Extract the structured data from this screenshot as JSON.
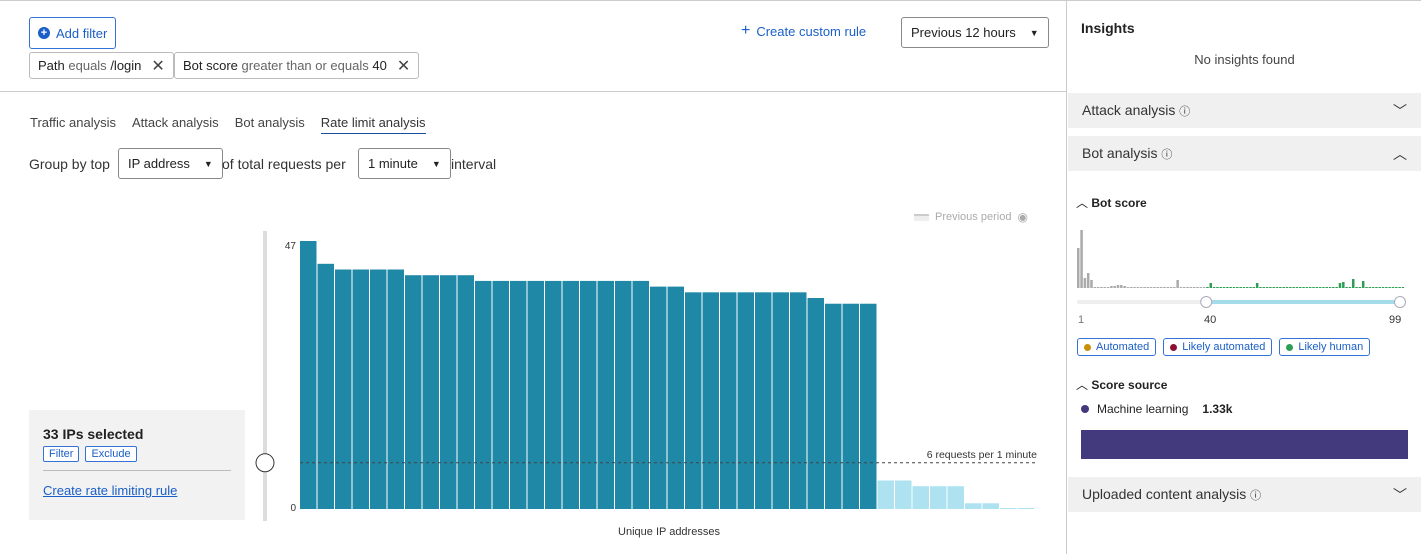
{
  "toolbar": {
    "add_filter": "Add filter",
    "create_rule": "Create custom rule",
    "time_range": "Previous 12 hours"
  },
  "filters": [
    {
      "field": "Path",
      "op": "equals",
      "value": "/login"
    },
    {
      "field": "Bot score",
      "op": "greater than or equals",
      "value": "40"
    }
  ],
  "tabs": [
    "Traffic analysis",
    "Attack analysis",
    "Bot analysis",
    "Rate limit analysis"
  ],
  "active_tab": "Rate limit analysis",
  "group": {
    "prefix": "Group by top",
    "group_by": "IP address",
    "middle": "of total requests per",
    "interval": "1 minute",
    "suffix": "interval"
  },
  "selection": {
    "title": "33 IPs selected",
    "filter": "Filter",
    "exclude": "Exclude",
    "create_rule": "Create rate limiting rule"
  },
  "chart_data": {
    "type": "bar",
    "xlabel": "Unique IP addresses",
    "ylabel": "",
    "y_ticks": [
      "47",
      "0"
    ],
    "ylim": [
      0,
      47
    ],
    "legend": "Previous period",
    "threshold": {
      "value": 6,
      "label": "6 requests per 1 minute"
    },
    "selected_values": [
      47,
      43,
      42,
      42,
      42,
      42,
      41,
      41,
      41,
      41,
      40,
      40,
      40,
      40,
      40,
      40,
      40,
      40,
      40,
      40,
      39,
      39,
      38,
      38,
      38,
      38,
      38,
      38,
      38,
      37,
      36,
      36,
      36
    ],
    "unselected_values": [
      5,
      5,
      4,
      4,
      4,
      1,
      1,
      0,
      0
    ],
    "colors": {
      "selected": "#1f88a6",
      "unselected": "#aee2f0"
    }
  },
  "insights": {
    "title": "Insights",
    "empty": "No insights found"
  },
  "accordion": {
    "attack": "Attack analysis",
    "bot": "Bot analysis",
    "uploaded": "Uploaded content analysis"
  },
  "bot_score": {
    "title": "Bot score",
    "min_label": "1",
    "selected_label": "40",
    "max_label": "99",
    "range": [
      40,
      99
    ],
    "histogram": [
      40,
      58,
      10,
      15,
      8,
      1,
      1,
      1,
      1,
      1,
      2,
      2,
      3,
      3,
      2,
      1,
      1,
      1,
      1,
      1,
      1,
      1,
      1,
      1,
      1,
      1,
      1,
      1,
      1,
      1,
      8,
      1,
      1,
      1,
      1,
      1,
      1,
      1,
      1,
      1,
      1,
      1,
      1,
      1,
      1,
      1,
      1,
      1,
      1,
      1,
      1,
      1,
      1,
      1,
      1,
      1,
      1,
      1,
      1,
      1,
      1,
      1,
      1,
      1,
      1,
      1,
      1,
      1,
      1,
      1,
      1,
      1,
      1,
      1,
      1,
      1,
      1,
      1,
      1,
      1,
      1,
      1,
      1,
      1,
      1,
      1,
      1,
      1,
      1,
      1,
      1,
      1,
      1,
      1,
      1,
      1,
      1,
      1,
      1
    ],
    "human_histogram": [
      6,
      6,
      8,
      6,
      8,
      10,
      8,
      8,
      6,
      8,
      6,
      8,
      4,
      6,
      8,
      2,
      1,
      1,
      1,
      1,
      1,
      1,
      1,
      1,
      1,
      1,
      1,
      1,
      5,
      1,
      1,
      1,
      1,
      1,
      1,
      1,
      1,
      1,
      1,
      1,
      5,
      1,
      1,
      1,
      1,
      1,
      1,
      1,
      1,
      1,
      1,
      1,
      1,
      1,
      5,
      1,
      1,
      1,
      1,
      1,
      1,
      1,
      1,
      1,
      1,
      1,
      1,
      1,
      1,
      1,
      1,
      1,
      1,
      1,
      1,
      1,
      1,
      1,
      1,
      5,
      6,
      1,
      1,
      9,
      1,
      1,
      7,
      1,
      1,
      1,
      1,
      1,
      1,
      1,
      1,
      1,
      1,
      1,
      1
    ],
    "legend": [
      {
        "label": "Automated",
        "color": "#c8900a"
      },
      {
        "label": "Likely automated",
        "color": "#8c1235"
      },
      {
        "label": "Likely human",
        "color": "#2e9e57"
      }
    ]
  },
  "score_source": {
    "title": "Score source",
    "items": [
      {
        "label": "Machine learning",
        "value": "1.33k",
        "color": "#433a7e"
      }
    ]
  }
}
